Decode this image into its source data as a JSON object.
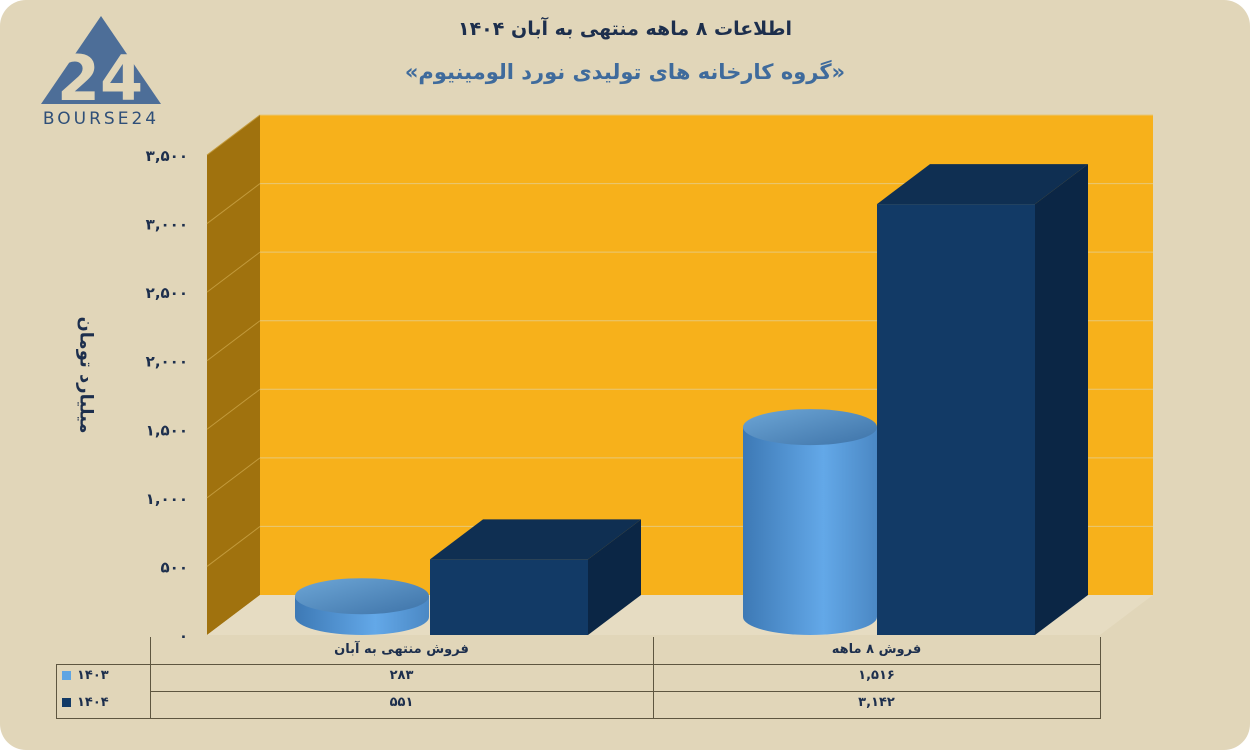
{
  "header": {
    "title": "اطلاعات ۸ ماهه منتهی به آبان ۱۴۰۴",
    "subtitle": "«گروه کارخانه های تولیدی نورد الومینیوم»"
  },
  "logo": {
    "text": "BOURSE24",
    "mark": "24"
  },
  "colors": {
    "series_1403": "#5ea5e3",
    "series_1404": "#123a66",
    "wall": "#f7b11b",
    "side_wall": "#a0720e"
  },
  "chart_data": {
    "type": "bar",
    "title": "",
    "ylabel": "میلیارد تومان",
    "ylim": [
      0,
      3500
    ],
    "yticks": [
      0,
      500,
      1000,
      1500,
      2000,
      2500,
      3000,
      3500
    ],
    "ytick_labels": [
      "۰",
      "۵۰۰",
      "۱,۰۰۰",
      "۱,۵۰۰",
      "۲,۰۰۰",
      "۲,۵۰۰",
      "۳,۰۰۰",
      "۳,۵۰۰"
    ],
    "categories": [
      "فروش منتهی به  آبان",
      "فروش  ۸  ماهه"
    ],
    "series": [
      {
        "name": "۱۴۰۳",
        "values": [
          283,
          1516
        ],
        "labels": [
          "۲۸۳",
          "۱,۵۱۶"
        ],
        "shape": "cylinder"
      },
      {
        "name": "۱۴۰۴",
        "values": [
          551,
          3142
        ],
        "labels": [
          "۵۵۱",
          "۳,۱۴۲"
        ],
        "shape": "box"
      }
    ],
    "grid": true,
    "legend": "data-table"
  }
}
